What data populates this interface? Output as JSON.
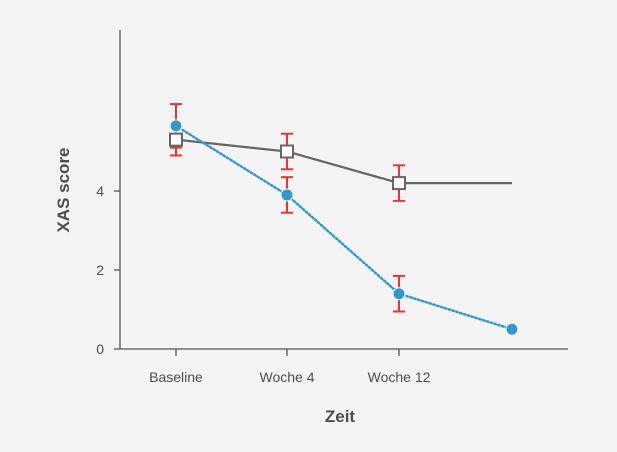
{
  "chart_data": {
    "type": "line",
    "title": "",
    "xlabel": "Zeit",
    "ylabel": "XAS score",
    "categories": [
      "Baseline",
      "Woche 4",
      "Woche 12",
      ""
    ],
    "ylim": [
      0,
      8
    ],
    "yticks": [
      0,
      2,
      4
    ],
    "grid": false,
    "legend": "none",
    "series": [
      {
        "marker": "open-square",
        "color": "#666666",
        "line_style": "solid",
        "values": [
          5.3,
          5.0,
          4.2,
          4.2
        ],
        "markers_shown": [
          true,
          true,
          true,
          false
        ],
        "error": [
          0.4,
          0.45,
          0.45,
          null
        ]
      },
      {
        "marker": "filled-circle",
        "color": "#3399cc",
        "line_style": "dotted",
        "values": [
          5.65,
          3.9,
          1.4,
          0.5
        ],
        "markers_shown": [
          true,
          true,
          true,
          true
        ],
        "error": [
          0.55,
          0.45,
          0.45,
          null
        ]
      }
    ],
    "error_bar_color": "#ee3333"
  }
}
